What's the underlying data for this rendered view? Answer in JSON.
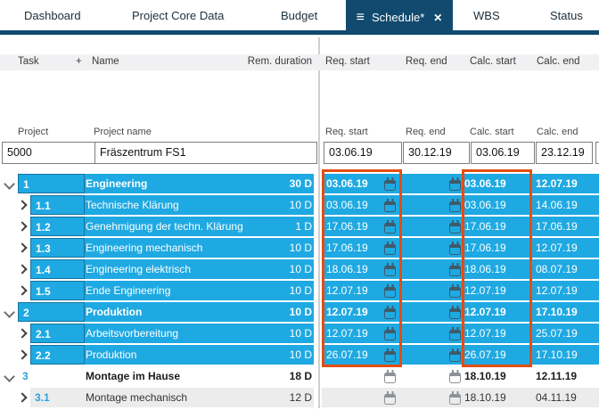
{
  "tabs": {
    "items": [
      "Dashboard",
      "Project Core Data",
      "Budget",
      "Schedule*",
      "WBS",
      "Status"
    ],
    "active": "Schedule*"
  },
  "icons": {
    "menu": "≡",
    "close": "✕"
  },
  "columns": {
    "task": "Task",
    "plus": "+",
    "name": "Name",
    "rem_duration": "Rem. duration",
    "req_start": "Req. start",
    "req_end": "Req. end",
    "calc_start": "Calc. start",
    "calc_end": "Calc. end"
  },
  "project": {
    "labels": {
      "project": "Project",
      "project_name": "Project name",
      "req_start": "Req. start",
      "req_end": "Req. end",
      "calc_start": "Calc. start",
      "calc_end": "Calc. end"
    },
    "values": {
      "id": "5000",
      "name": "Fräszentrum FS1",
      "req_start": "03.06.19",
      "req_end": "30.12.19",
      "calc_start": "03.06.19",
      "calc_end": "23.12.19"
    }
  },
  "tasks": [
    {
      "id": "1",
      "name": "Engineering",
      "duration": "30 D",
      "level": 0,
      "expanded": true,
      "emphasis": true,
      "state": "selected",
      "req_start": "03.06.19",
      "req_end": "",
      "calc_start": "03.06.19",
      "calc_end": "12.07.19"
    },
    {
      "id": "1.1",
      "name": "Technische Klärung",
      "duration": "10 D",
      "level": 1,
      "expanded": false,
      "emphasis": false,
      "state": "selected",
      "req_start": "03.06.19",
      "req_end": "",
      "calc_start": "03.06.19",
      "calc_end": "14.06.19"
    },
    {
      "id": "1.2",
      "name": "Genehmigung der techn. Klärung",
      "duration": "1 D",
      "level": 1,
      "expanded": false,
      "emphasis": false,
      "state": "selected",
      "req_start": "17.06.19",
      "req_end": "",
      "calc_start": "17.06.19",
      "calc_end": "17.06.19"
    },
    {
      "id": "1.3",
      "name": "Engineering mechanisch",
      "duration": "10 D",
      "level": 1,
      "expanded": false,
      "emphasis": false,
      "state": "selected",
      "req_start": "17.06.19",
      "req_end": "",
      "calc_start": "17.06.19",
      "calc_end": "12.07.19"
    },
    {
      "id": "1.4",
      "name": "Engineering elektrisch",
      "duration": "10 D",
      "level": 1,
      "expanded": false,
      "emphasis": false,
      "state": "selected",
      "req_start": "18.06.19",
      "req_end": "",
      "calc_start": "18.06.19",
      "calc_end": "08.07.19"
    },
    {
      "id": "1.5",
      "name": "Ende Engineering",
      "duration": "10 D",
      "level": 1,
      "expanded": false,
      "emphasis": false,
      "state": "selected",
      "req_start": "12.07.19",
      "req_end": "",
      "calc_start": "12.07.19",
      "calc_end": "12.07.19"
    },
    {
      "id": "2",
      "name": "Produktion",
      "duration": "10 D",
      "level": 0,
      "expanded": true,
      "emphasis": true,
      "state": "selected",
      "req_start": "12.07.19",
      "req_end": "",
      "calc_start": "12.07.19",
      "calc_end": "17.10.19"
    },
    {
      "id": "2.1",
      "name": "Arbeitsvorbereitung",
      "duration": "10 D",
      "level": 1,
      "expanded": false,
      "emphasis": false,
      "state": "selected",
      "req_start": "12.07.19",
      "req_end": "",
      "calc_start": "12.07.19",
      "calc_end": "25.07.19"
    },
    {
      "id": "2.2",
      "name": "Produktion",
      "duration": "10 D",
      "level": 1,
      "expanded": false,
      "emphasis": false,
      "state": "selected",
      "req_start": "26.07.19",
      "req_end": "",
      "calc_start": "26.07.19",
      "calc_end": "17.10.19"
    },
    {
      "id": "3",
      "name": "Montage im Hause",
      "duration": "18 D",
      "level": 0,
      "expanded": true,
      "emphasis": true,
      "state": "normal",
      "req_start": "",
      "req_end": "",
      "calc_start": "18.10.19",
      "calc_end": "12.11.19"
    },
    {
      "id": "3.1",
      "name": "Montage mechanisch",
      "duration": "12 D",
      "level": 1,
      "expanded": false,
      "emphasis": false,
      "state": "alt",
      "req_start": "",
      "req_end": "",
      "calc_start": "18.10.19",
      "calc_end": "04.11.19"
    }
  ],
  "annotations": {
    "boxes": [
      "req-start-column-highlight",
      "calc-start-column-highlight"
    ]
  },
  "colors": {
    "active_tab": "#114a6e",
    "row_highlight": "#1fa9e2",
    "annotation": "#e44d12",
    "alt_row": "#ececec",
    "header_band": "#f1f1f3"
  }
}
